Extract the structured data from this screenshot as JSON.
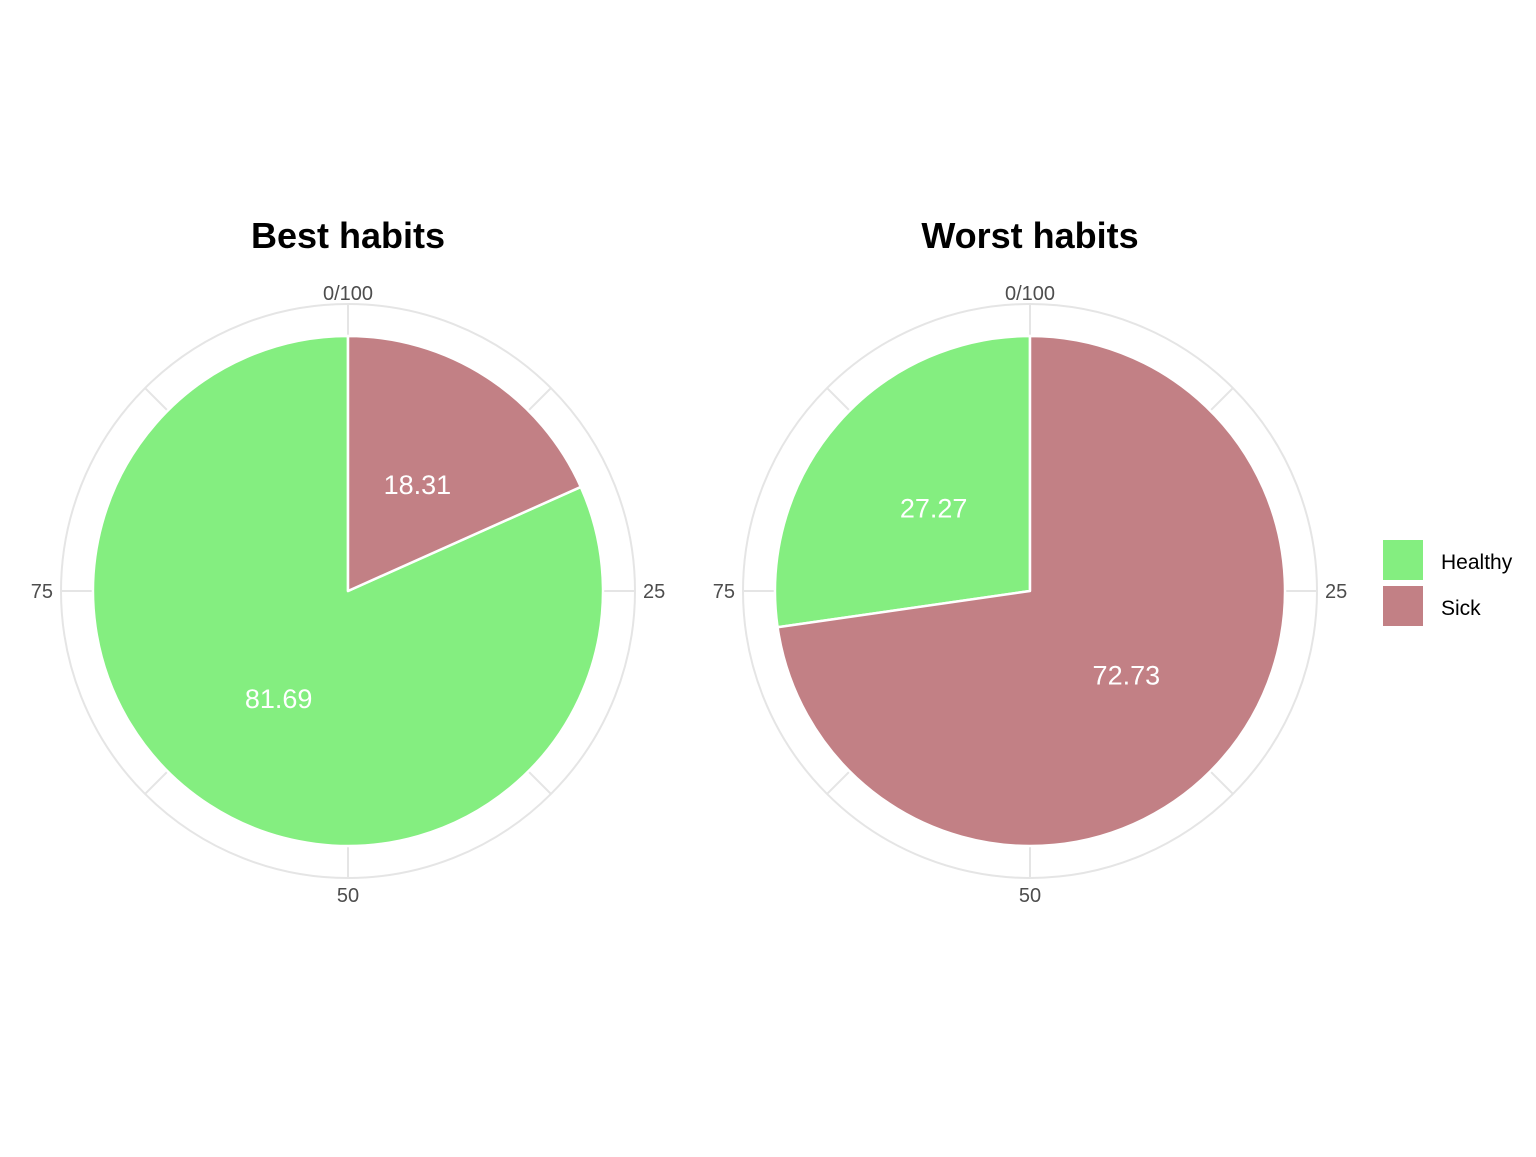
{
  "chart_data": [
    {
      "type": "pie",
      "title": "Best habits",
      "categories": [
        "Healthy",
        "Sick"
      ],
      "values": [
        81.69,
        18.31
      ],
      "labels": [
        "81.69",
        "18.31"
      ],
      "theta_ticks": [
        "0/100",
        "25",
        "50",
        "75"
      ],
      "direction": "clockwise from top",
      "grid": true
    },
    {
      "type": "pie",
      "title": "Worst habits",
      "categories": [
        "Healthy",
        "Sick"
      ],
      "values": [
        27.27,
        72.73
      ],
      "labels": [
        "27.27",
        "72.73"
      ],
      "theta_ticks": [
        "0/100",
        "25",
        "50",
        "75"
      ],
      "direction": "clockwise from top",
      "grid": true
    }
  ],
  "legend": {
    "placement": "right",
    "items": [
      {
        "label": "Healthy",
        "color": "#84ee80"
      },
      {
        "label": "Sick",
        "color": "#c28085"
      }
    ]
  },
  "colors": {
    "Healthy": "#84ee80",
    "Sick": "#c28085",
    "grid": "#e5e5e5",
    "slice_border": "#ffffff"
  }
}
